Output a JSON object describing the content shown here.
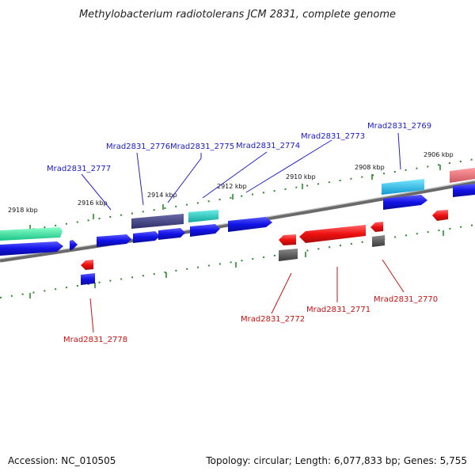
{
  "title": "Methylobacterium radiotolerans JCM 2831, complete genome",
  "footer": {
    "accession": "Accession: NC_010505",
    "summary": "Topology: circular; Length: 6,077,833 bp; Genes: 5,755"
  },
  "ticks": [
    "2918 kbp",
    "2916 kbp",
    "2914 kbp",
    "2912 kbp",
    "2910 kbp",
    "2908 kbp",
    "2906 kbp"
  ],
  "gene_labels_top": [
    "Mrad2831_2777",
    "Mrad2831_2776",
    "Mrad2831_2775",
    "Mrad2831_2774",
    "Mrad2831_2773",
    "Mrad2831_2769"
  ],
  "gene_labels_bottom": [
    "Mrad2831_2778",
    "Mrad2831_2772",
    "Mrad2831_2771",
    "Mrad2831_2770"
  ],
  "colors": {
    "forward_cds": "#1010e0",
    "reverse_cds": "#ee1111",
    "tick_marks": "#2a8a2a",
    "backbone": "#808080"
  }
}
